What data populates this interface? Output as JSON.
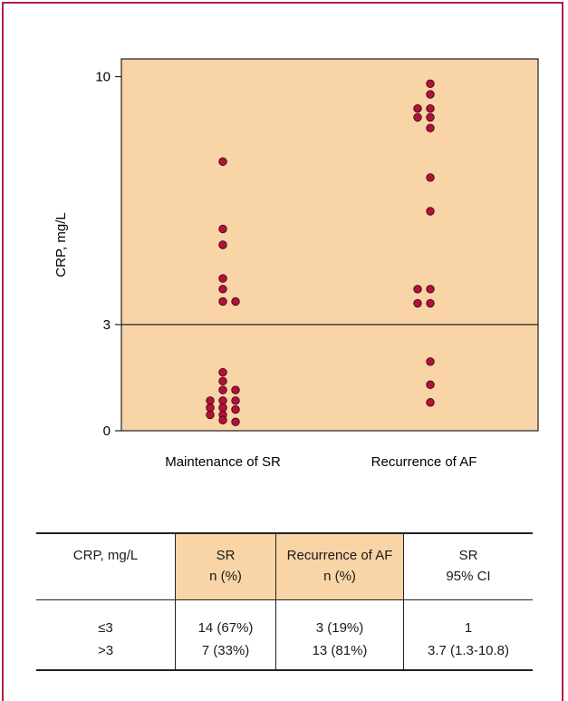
{
  "chart_data": {
    "type": "scatter",
    "ylabel": "CRP, mg/L",
    "xlabel": "",
    "categories": [
      "Maintenance of SR",
      "Recurrence of AF"
    ],
    "yticks": [
      0,
      3,
      10
    ],
    "ylim": [
      0,
      10.5
    ],
    "reference_line": 3,
    "grid": false,
    "colors": {
      "plot_bg": "#f8d4a6",
      "point": "#b0123a",
      "point_stroke": "#3a0010"
    },
    "series": [
      {
        "category": "Maintenance of SR",
        "points": [
          {
            "offset": 0,
            "y": 7.6
          },
          {
            "offset": 0,
            "y": 5.7
          },
          {
            "offset": 0,
            "y": 5.25
          },
          {
            "offset": 0,
            "y": 4.3
          },
          {
            "offset": 0,
            "y": 4.0
          },
          {
            "offset": 0,
            "y": 3.65
          },
          {
            "offset": 1,
            "y": 3.65
          },
          {
            "offset": 0,
            "y": 1.65
          },
          {
            "offset": 0,
            "y": 1.4
          },
          {
            "offset": 0,
            "y": 1.15
          },
          {
            "offset": 1,
            "y": 1.15
          },
          {
            "offset": -1,
            "y": 0.85
          },
          {
            "offset": 0,
            "y": 0.85
          },
          {
            "offset": 1,
            "y": 0.85
          },
          {
            "offset": -1,
            "y": 0.65
          },
          {
            "offset": 0,
            "y": 0.65
          },
          {
            "offset": 1,
            "y": 0.6
          },
          {
            "offset": -1,
            "y": 0.45
          },
          {
            "offset": 0,
            "y": 0.45
          },
          {
            "offset": 0,
            "y": 0.3
          },
          {
            "offset": 1,
            "y": 0.25
          }
        ]
      },
      {
        "category": "Recurrence of AF",
        "points": [
          {
            "offset": 0.5,
            "y": 9.8
          },
          {
            "offset": 0.5,
            "y": 9.5
          },
          {
            "offset": -0.5,
            "y": 9.1
          },
          {
            "offset": 0.5,
            "y": 9.1
          },
          {
            "offset": -0.5,
            "y": 8.85
          },
          {
            "offset": 0.5,
            "y": 8.85
          },
          {
            "offset": 0.5,
            "y": 8.55
          },
          {
            "offset": 0.5,
            "y": 7.15
          },
          {
            "offset": 0.5,
            "y": 6.2
          },
          {
            "offset": -0.5,
            "y": 4.0
          },
          {
            "offset": 0.5,
            "y": 4.0
          },
          {
            "offset": -0.5,
            "y": 3.6
          },
          {
            "offset": 0.5,
            "y": 3.6
          },
          {
            "offset": 0.5,
            "y": 1.95
          },
          {
            "offset": 0.5,
            "y": 1.3
          },
          {
            "offset": 0.5,
            "y": 0.8
          }
        ]
      }
    ]
  },
  "table": {
    "header_row1": [
      "CRP, mg/L",
      "SR",
      "Recurrence of AF",
      "SR"
    ],
    "header_row2": [
      "",
      "n (%)",
      "n (%)",
      "95% CI"
    ],
    "rows": [
      [
        "≤3",
        "14 (67%)",
        "3 (19%)",
        "1"
      ],
      [
        ">3",
        "7 (33%)",
        "13 (81%)",
        "3.7 (1.3-10.8)"
      ]
    ]
  }
}
